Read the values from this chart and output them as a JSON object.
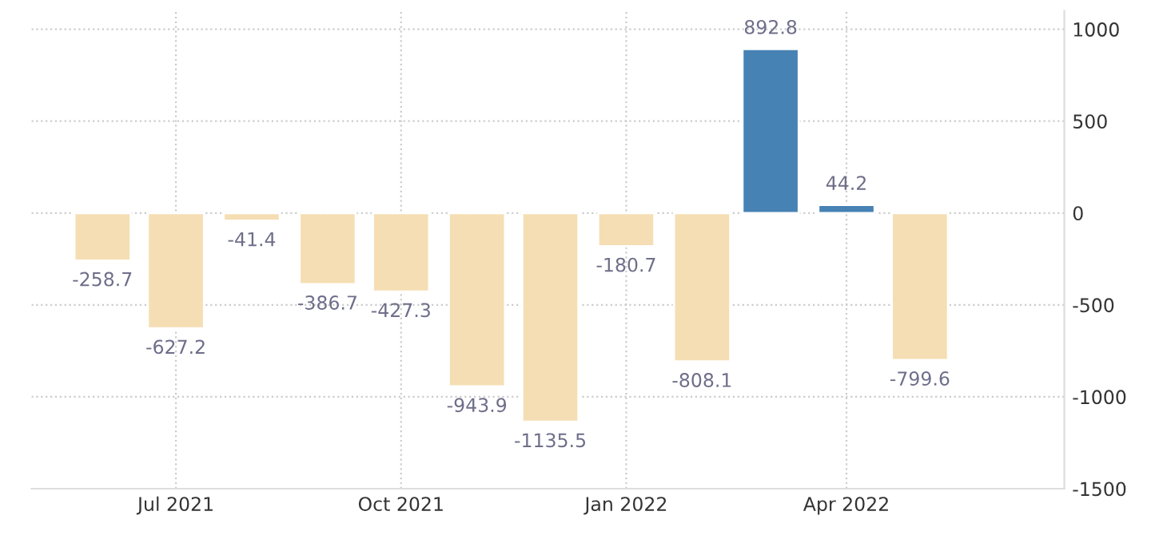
{
  "chart_data": {
    "type": "bar",
    "x": [
      "2021-06",
      "2021-07",
      "2021-08",
      "2021-09",
      "2021-10",
      "2021-11",
      "2021-12",
      "2022-01",
      "2022-02",
      "2022-03",
      "2022-04",
      "2022-05"
    ],
    "values": [
      -258.7,
      -627.2,
      -41.4,
      -386.7,
      -427.3,
      -943.9,
      -1135.5,
      -180.7,
      -808.1,
      892.8,
      44.2,
      -799.6
    ],
    "colors": [
      "#f5deb3",
      "#f5deb3",
      "#f5deb3",
      "#f5deb3",
      "#f5deb3",
      "#f5deb3",
      "#f5deb3",
      "#f5deb3",
      "#f5deb3",
      "#4682b4",
      "#4682b4",
      "#f5deb3"
    ],
    "data_labels": true,
    "xlim": [
      "2021-05-03",
      "2022-06-29"
    ],
    "xticks": [
      {
        "value": "2021-07",
        "label": "Jul 2021"
      },
      {
        "value": "2021-10",
        "label": "Oct 2021"
      },
      {
        "value": "2022-01",
        "label": "Jan 2022"
      },
      {
        "value": "2022-04",
        "label": "Apr 2022"
      }
    ],
    "ylim": [
      -1500,
      1100
    ],
    "yticks": [
      -1500,
      -1000,
      -500,
      0,
      500,
      1000
    ],
    "grid": true
  }
}
